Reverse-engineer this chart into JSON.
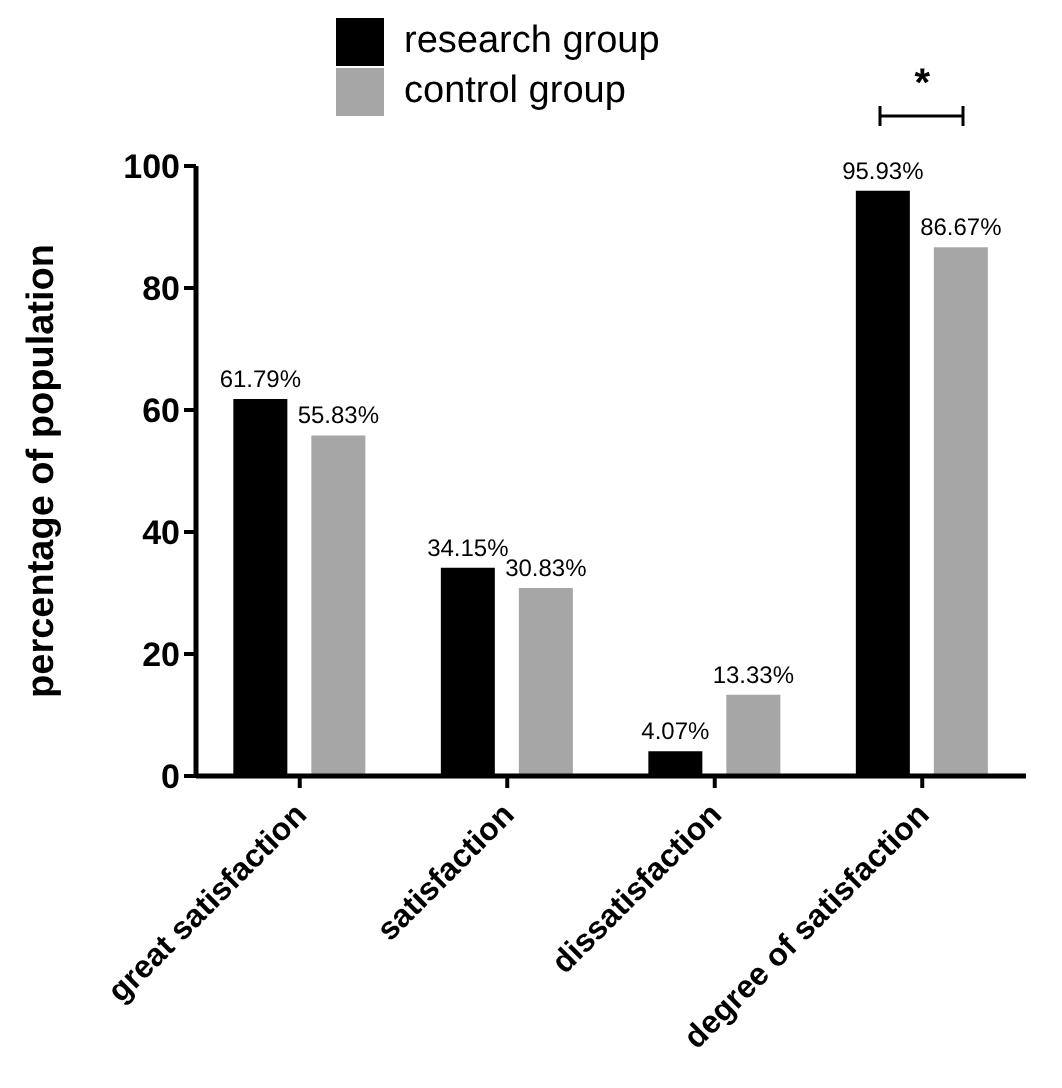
{
  "chart_data": {
    "type": "bar",
    "categories": [
      "great satisfaction",
      "satisfaction",
      "dissatisfaction",
      "degree of satisfaction"
    ],
    "series": [
      {
        "name": "research group",
        "color": "#000000",
        "values": [
          61.79,
          34.15,
          4.07,
          95.93
        ],
        "value_labels": [
          "61.79%",
          "34.15%",
          "4.07%",
          "95.93%"
        ]
      },
      {
        "name": "control group",
        "color": "#a6a6a6",
        "values": [
          55.83,
          30.83,
          13.33,
          86.67
        ],
        "value_labels": [
          "55.83%",
          "30.83%",
          "13.33%",
          "86.67%"
        ]
      }
    ],
    "ylabel": "percentage of population",
    "ylim": [
      0,
      100
    ],
    "yticks": [
      0,
      20,
      40,
      60,
      80,
      100
    ],
    "grid": false,
    "legend": "top",
    "annotations": [
      "*"
    ]
  }
}
